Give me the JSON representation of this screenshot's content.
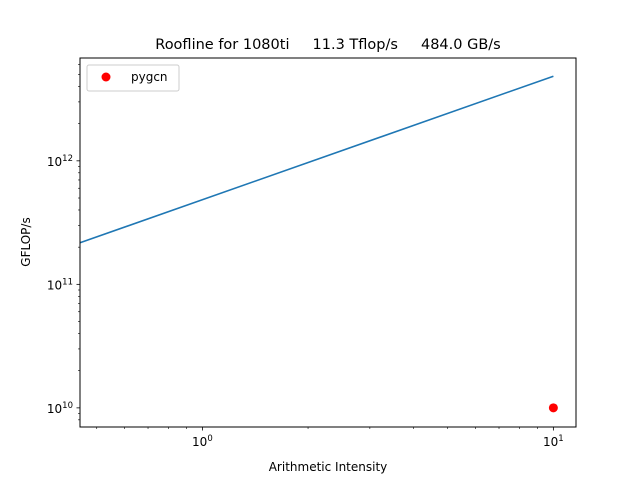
{
  "chart_data": {
    "type": "line",
    "title": "Roofline for 1080ti     11.3 Tflop/s     484.0 GB/s",
    "xlabel": "Arithmetic Intensity",
    "ylabel": "GFLOP/s",
    "xscale": "log",
    "yscale": "log",
    "xlim": [
      0.448,
      11.6
    ],
    "ylim": [
      7000000000.0,
      6800000000000.0
    ],
    "grid": false,
    "legend_position": "top-left",
    "x_ticks": [
      {
        "value": 1,
        "base": "10",
        "exp": "0"
      },
      {
        "value": 10,
        "base": "10",
        "exp": "1"
      }
    ],
    "y_ticks": [
      {
        "value": 10000000000.0,
        "base": "10",
        "exp": "10"
      },
      {
        "value": 100000000000.0,
        "base": "10",
        "exp": "11"
      },
      {
        "value": 1000000000000.0,
        "base": "10",
        "exp": "12"
      }
    ],
    "series": [
      {
        "kind": "line",
        "color": "#1f77b4",
        "x": [
          0.448,
          10.0
        ],
        "y": [
          217000000000.0,
          4840000000000.0
        ]
      },
      {
        "kind": "scatter",
        "name": "pygcn",
        "color": "#ff0000",
        "x": [
          10.0
        ],
        "y": [
          10000000000.0
        ]
      }
    ]
  }
}
